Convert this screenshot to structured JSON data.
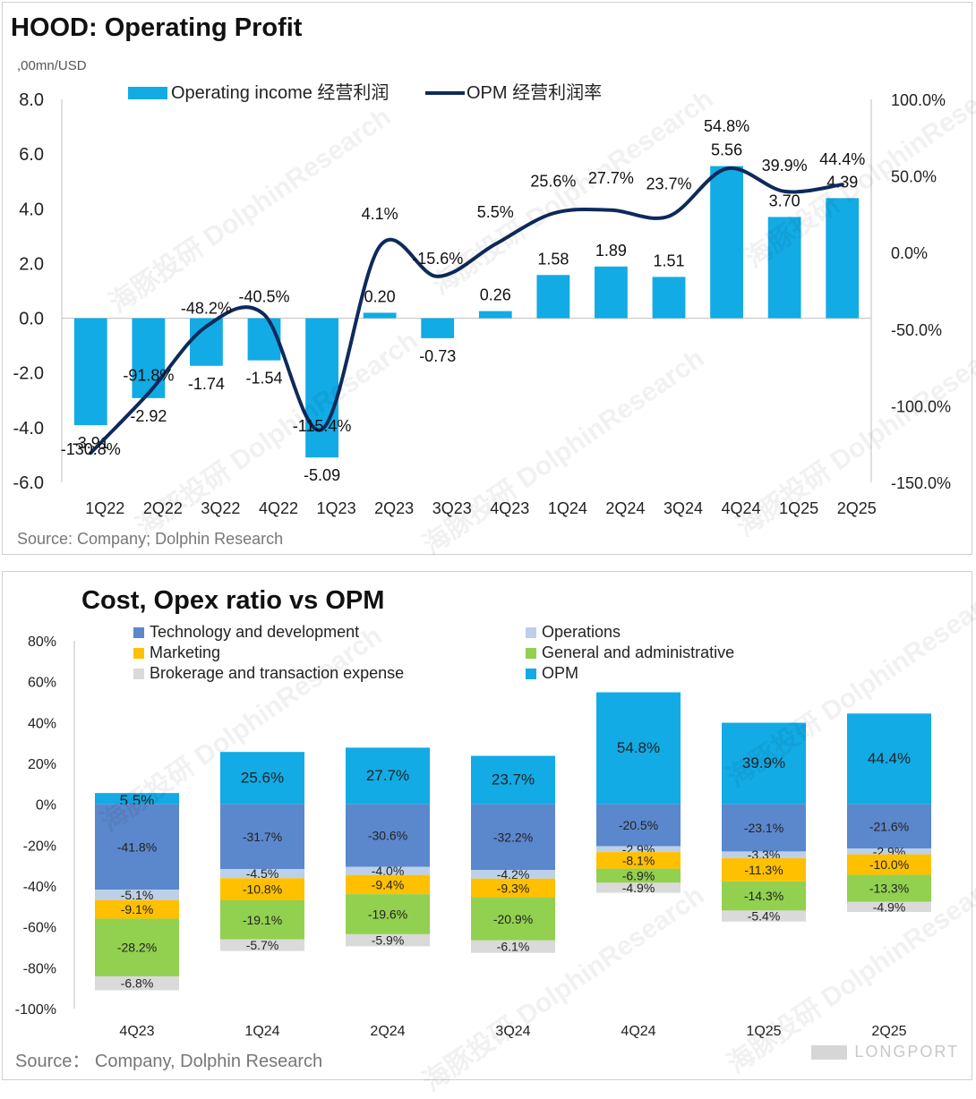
{
  "chart_data": [
    {
      "type": "bar",
      "title": "HOOD: Operating Profit",
      "unit_label": ",00mn/USD",
      "source": "Source: Company; Dolphin Research",
      "categories": [
        "1Q22",
        "2Q22",
        "3Q22",
        "4Q22",
        "1Q23",
        "2Q23",
        "3Q23",
        "4Q23",
        "1Q24",
        "2Q24",
        "3Q24",
        "4Q24",
        "1Q25",
        "2Q25"
      ],
      "series": [
        {
          "name": "Operating income 经营利润",
          "type": "bar",
          "axis": "left",
          "values": [
            -3.91,
            -2.92,
            -1.74,
            -1.54,
            -5.09,
            0.2,
            -0.73,
            0.26,
            1.58,
            1.89,
            1.51,
            5.56,
            3.7,
            4.39
          ],
          "labels": [
            "-3.91",
            "-2.92",
            "-1.74",
            "-1.54",
            "-5.09",
            "0.20",
            "-0.73",
            "0.26",
            "1.58",
            "1.89",
            "1.51",
            "5.56",
            "3.70",
            "4.39"
          ]
        },
        {
          "name": "OPM 经营利润率",
          "type": "line",
          "axis": "right",
          "values": [
            -130.8,
            -91.8,
            -48.2,
            -40.5,
            -115.4,
            4.1,
            -15.6,
            5.5,
            25.6,
            27.7,
            23.7,
            54.8,
            39.9,
            44.4
          ],
          "labels": [
            "-130.8%",
            "-91.8%",
            "-48.2%",
            "-40.5%",
            "-115.4%",
            "4.1%",
            "-15.6%",
            "5.5%",
            "25.6%",
            "27.7%",
            "23.7%",
            "54.8%",
            "39.9%",
            "44.4%"
          ]
        }
      ],
      "y_left": {
        "range": [
          -6,
          8
        ],
        "ticks": [
          "8.0",
          "6.0",
          "4.0",
          "2.0",
          "0.0",
          "-2.0",
          "-4.0",
          "-6.0"
        ]
      },
      "y_right": {
        "range": [
          -150,
          100
        ],
        "ticks": [
          "100.0%",
          "50.0%",
          "0.0%",
          "-50.0%",
          "-100.0%",
          "-150.0%"
        ]
      },
      "legend_position": "top",
      "grid": false,
      "colors": {
        "bar": "#12ABE5",
        "line": "#0E2A5C"
      }
    },
    {
      "type": "bar",
      "stacked": true,
      "title": "Cost, Opex ratio vs OPM",
      "source": "Source： Company, Dolphin Research",
      "categories": [
        "4Q23",
        "1Q24",
        "2Q24",
        "3Q24",
        "4Q24",
        "1Q25",
        "2Q25"
      ],
      "y_ticks": [
        "80%",
        "60%",
        "40%",
        "20%",
        "0%",
        "-20%",
        "-40%",
        "-60%",
        "-80%",
        "-100%"
      ],
      "ylim": [
        -100,
        80
      ],
      "legend_position": "top",
      "legend_order": [
        "Technology and development",
        "Operations",
        "Marketing",
        "General and administrative",
        "Brokerage and transaction expense",
        "OPM"
      ],
      "series": [
        {
          "name": "OPM",
          "color": "#12ABE5",
          "values": [
            5.5,
            25.6,
            27.7,
            23.7,
            54.8,
            39.9,
            44.4
          ],
          "labels": [
            "5.5%",
            "25.6%",
            "27.7%",
            "23.7%",
            "54.8%",
            "39.9%",
            "44.4%"
          ]
        },
        {
          "name": "Technology and development",
          "color": "#5B87CC",
          "values": [
            -41.8,
            -31.7,
            -30.6,
            -32.2,
            -20.5,
            -23.1,
            -21.6
          ],
          "labels": [
            "-41.8%",
            "-31.7%",
            "-30.6%",
            "-32.2%",
            "-20.5%",
            "-23.1%",
            "-21.6%"
          ]
        },
        {
          "name": "Operations",
          "color": "#BCD0EA",
          "values": [
            -5.1,
            -4.5,
            -4.0,
            -4.2,
            -2.9,
            -3.3,
            -2.9
          ],
          "labels": [
            "-5.1%",
            "-4.5%",
            "-4.0%",
            "-4.2%",
            "-2.9%",
            "-3.3%",
            "-2.9%"
          ]
        },
        {
          "name": "Marketing",
          "color": "#FFC000",
          "values": [
            -9.1,
            -10.8,
            -9.4,
            -9.3,
            -8.1,
            -11.3,
            -10.0
          ],
          "labels": [
            "-9.1%",
            "-10.8%",
            "-9.4%",
            "-9.3%",
            "-8.1%",
            "-11.3%",
            "-10.0%"
          ]
        },
        {
          "name": "General and administrative",
          "color": "#92D050",
          "values": [
            -28.2,
            -19.1,
            -19.6,
            -20.9,
            -6.9,
            -14.3,
            -13.3
          ],
          "labels": [
            "-28.2%",
            "-19.1%",
            "-19.6%",
            "-20.9%",
            "-6.9%",
            "-14.3%",
            "-13.3%"
          ]
        },
        {
          "name": "Brokerage and transaction expense",
          "color": "#DADADA",
          "values": [
            -6.8,
            -5.7,
            -5.9,
            -6.1,
            -4.9,
            -5.4,
            -4.9
          ],
          "labels": [
            "-6.8%",
            "-5.7%",
            "-5.9%",
            "-6.1%",
            "-4.9%",
            "-5.4%",
            "-4.9%"
          ]
        }
      ]
    }
  ],
  "watermark": {
    "cn": "海豚投研",
    "en": "DolphinResearch"
  },
  "brand": "LONGPORT"
}
